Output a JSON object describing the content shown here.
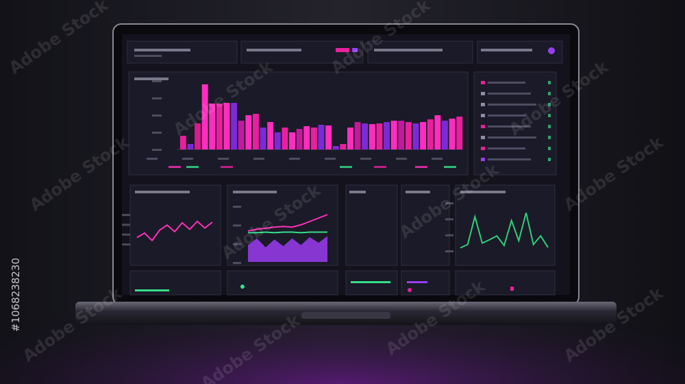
{
  "watermark": "Adobe Stock",
  "stock_id": "#1068238230",
  "chart_data": [
    {
      "type": "bar",
      "ylim": [
        0,
        100
      ],
      "values": [
        20,
        8,
        38,
        95,
        67,
        67,
        68,
        68,
        42,
        50,
        52,
        32,
        40,
        25,
        32,
        25,
        30,
        34,
        32,
        36,
        35,
        5,
        8,
        32,
        40,
        38,
        37,
        38,
        40,
        42,
        42,
        40,
        38,
        40,
        44,
        50,
        42,
        45,
        48
      ],
      "colors": [
        "#e8209e",
        "#7a2bd6",
        "#d81b8e",
        "#ff2dbd",
        "#ff2dbd",
        "#e8209e",
        "#ff2dbd",
        "#7a2bd6",
        "#c21a9a",
        "#ff2dbd",
        "#e8209e",
        "#7a2bd6",
        "#ff2dbd",
        "#7a2bd6",
        "#e8209e",
        "#ff2dbd",
        "#c21a9a",
        "#ff2dbd",
        "#e8209e",
        "#7a2bd6",
        "#ff2dbd",
        "#7a2bd6",
        "#e8209e",
        "#ff2dbd",
        "#c21a9a",
        "#7a2bd6",
        "#ff2dbd",
        "#e8209e",
        "#7a2bd6",
        "#ff2dbd",
        "#c21a9a",
        "#e8209e",
        "#7a2bd6",
        "#ff2dbd",
        "#e8209e",
        "#ff2dbd",
        "#7a2bd6",
        "#ff2dbd",
        "#e8209e"
      ]
    },
    {
      "type": "line",
      "ylim": [
        0,
        100
      ],
      "series": [
        {
          "color": "#ff2fb8",
          "values": [
            20,
            35,
            10,
            45,
            62,
            40,
            70,
            48,
            75,
            52,
            72
          ]
        }
      ]
    },
    {
      "type": "line",
      "ylim": [
        0,
        100
      ],
      "series": [
        {
          "color": "#9a3cf0",
          "area": true,
          "values": [
            30,
            42,
            26,
            40,
            28,
            42,
            30,
            44,
            34,
            46
          ]
        },
        {
          "color": "#35e08a",
          "values": [
            52,
            52,
            53,
            52,
            53,
            53,
            52,
            53,
            53,
            53
          ]
        },
        {
          "color": "#ff2fb8",
          "values": [
            55,
            58,
            60,
            62,
            63,
            62,
            66,
            72,
            78,
            84
          ]
        }
      ]
    },
    {
      "type": "line",
      "ylim": [
        0,
        100
      ],
      "series": [
        {
          "color": "#2fd07a",
          "values": [
            5,
            12,
            70,
            15,
            22,
            30,
            10,
            62,
            20,
            78,
            12,
            30,
            6
          ]
        }
      ]
    }
  ]
}
